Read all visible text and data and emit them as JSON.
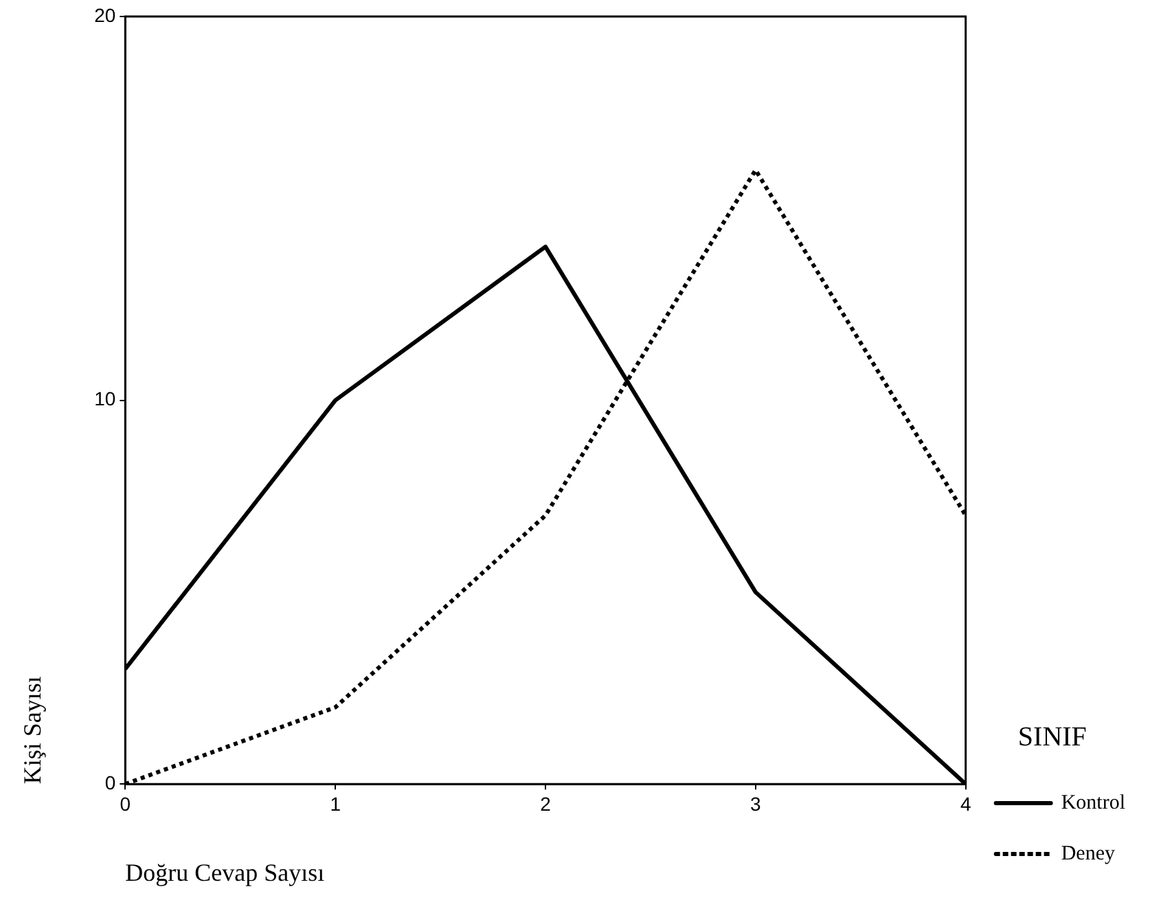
{
  "chart_data": {
    "type": "line",
    "xlabel": "Doğru Cevap Sayısı",
    "ylabel": "Kişi Sayısı",
    "legend_title": "SINIF",
    "x": [
      0,
      1,
      2,
      3,
      4
    ],
    "xlim": [
      0,
      4
    ],
    "xticks": [
      0,
      1,
      2,
      3,
      4
    ],
    "ylim": [
      0,
      20
    ],
    "yticks": [
      0,
      10,
      20
    ],
    "grid": false,
    "legend": "right",
    "marker": "none",
    "series": [
      {
        "name": "Kontrol",
        "color": "#000000",
        "line_style": "solid",
        "values": [
          3,
          10,
          14,
          5,
          0
        ]
      },
      {
        "name": "Deney",
        "color": "#000000",
        "line_style": "dotted",
        "values": [
          0,
          2,
          7,
          16,
          7
        ]
      }
    ]
  }
}
